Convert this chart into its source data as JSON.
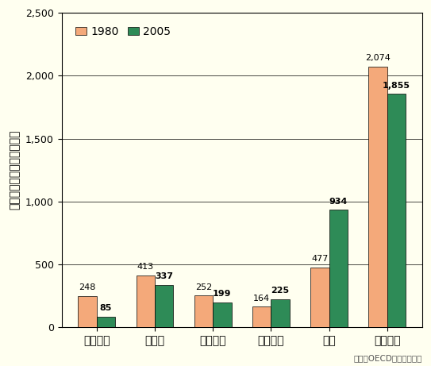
{
  "categories": [
    "フランス",
    "ドイツ",
    "イギリス",
    "イタリア",
    "日本",
    "アメリカ"
  ],
  "values_1980": [
    248,
    413,
    252,
    164,
    477,
    2074
  ],
  "values_2005": [
    85,
    337,
    199,
    225,
    934,
    1855
  ],
  "color_1980": "#F4A97A",
  "color_2005": "#2E8B57",
  "ylabel_chars": [
    "交",
    "通",
    "事",
    "故",
    "件",
    "数",
    "（",
    "千",
    "件",
    "／",
    "年",
    "）"
  ],
  "ylim": [
    0,
    2500
  ],
  "yticks": [
    0,
    500,
    1000,
    1500,
    2000,
    2500
  ],
  "ytick_labels": [
    "0",
    "500",
    "1,000",
    "1,500",
    "2,000",
    "2,500"
  ],
  "legend_labels": [
    "1980",
    "2005"
  ],
  "source_text": "出典：OECD資料より作成",
  "background_color": "#FFFFF0",
  "plot_bg_color": "#FFFFF0",
  "bar_width": 0.32,
  "label_fontsize": 8,
  "axis_label_fontsize": 10,
  "tick_fontsize": 9,
  "legend_fontsize": 10
}
